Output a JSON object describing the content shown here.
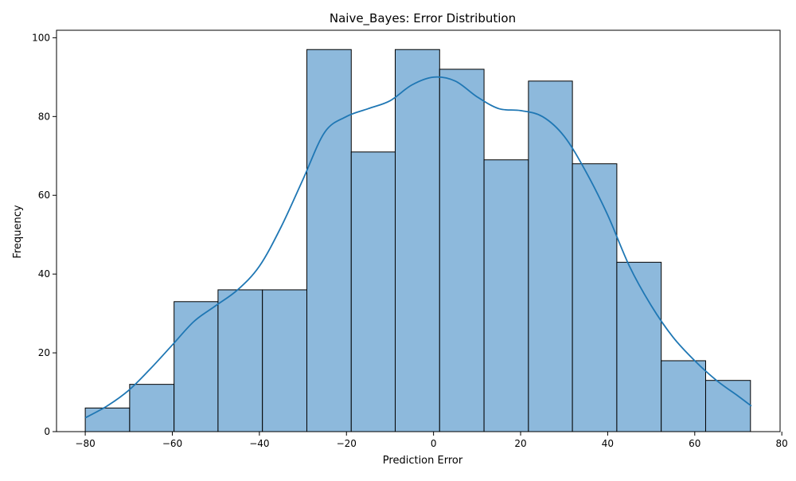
{
  "chart_data": {
    "type": "bar",
    "title": "Naive_Bayes: Error Distribution",
    "xlabel": "Prediction Error",
    "ylabel": "Frequency",
    "xlim": [
      -86.6,
      79.6
    ],
    "ylim": [
      0,
      101.9
    ],
    "grid": false,
    "bar_color": "#8db9dc",
    "bar_edge_color": "#000000",
    "kde_color": "#1f77b4",
    "bins": [
      {
        "x0": -80.0,
        "x1": -69.8,
        "count": 6
      },
      {
        "x0": -69.8,
        "x1": -59.6,
        "count": 12
      },
      {
        "x0": -59.6,
        "x1": -49.5,
        "count": 33
      },
      {
        "x0": -49.5,
        "x1": -39.3,
        "count": 36
      },
      {
        "x0": -39.3,
        "x1": -29.1,
        "count": 36
      },
      {
        "x0": -29.1,
        "x1": -18.9,
        "count": 97
      },
      {
        "x0": -18.9,
        "x1": -8.8,
        "count": 71
      },
      {
        "x0": -8.8,
        "x1": 1.4,
        "count": 97
      },
      {
        "x0": 1.4,
        "x1": 11.6,
        "count": 92
      },
      {
        "x0": 11.6,
        "x1": 21.8,
        "count": 69
      },
      {
        "x0": 21.8,
        "x1": 31.9,
        "count": 89
      },
      {
        "x0": 31.9,
        "x1": 42.1,
        "count": 68
      },
      {
        "x0": 42.1,
        "x1": 52.3,
        "count": 43
      },
      {
        "x0": 52.3,
        "x1": 62.5,
        "count": 18
      },
      {
        "x0": 62.5,
        "x1": 72.8,
        "count": 13
      }
    ],
    "kde": {
      "x": [
        -80,
        -75,
        -70,
        -65,
        -60,
        -55,
        -50,
        -45,
        -40,
        -35,
        -30,
        -25,
        -20,
        -15,
        -10,
        -5,
        0,
        5,
        10,
        15,
        20,
        25,
        30,
        35,
        40,
        45,
        50,
        55,
        60,
        65,
        70,
        73
      ],
      "y": [
        3.5,
        6.5,
        10.5,
        16,
        22,
        28,
        32,
        36,
        42,
        52,
        64,
        76,
        80,
        82,
        84,
        88,
        90,
        89,
        85,
        82,
        81.5,
        80,
        75,
        66,
        55,
        42,
        32,
        24,
        18,
        13,
        9,
        6.5
      ]
    },
    "xticks": [
      -80,
      -60,
      -40,
      -20,
      0,
      20,
      40,
      60,
      80
    ],
    "xtick_labels": [
      "−80",
      "−60",
      "−40",
      "−20",
      "0",
      "20",
      "40",
      "60",
      "80"
    ],
    "yticks": [
      0,
      20,
      40,
      60,
      80,
      100
    ],
    "ytick_labels": [
      "0",
      "20",
      "40",
      "60",
      "80",
      "100"
    ]
  }
}
